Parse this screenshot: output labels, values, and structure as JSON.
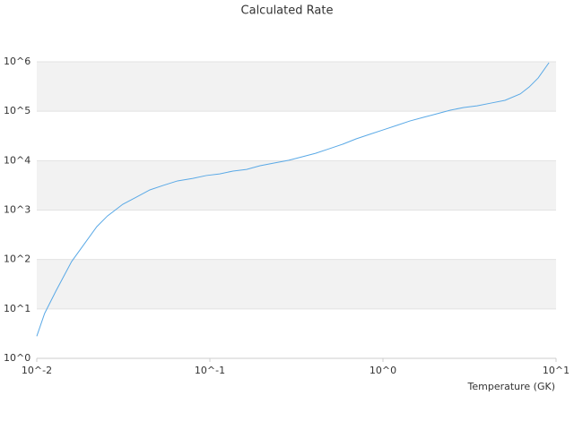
{
  "chart_data": {
    "type": "line",
    "title": "Calculated Rate",
    "x_label": "Temperature (GK)",
    "x_scale": "log",
    "y_scale": "log",
    "grid": true,
    "band_color": "#f2f2f2",
    "xlim": [
      0.01,
      10
    ],
    "ylim": [
      1,
      1000000
    ],
    "xticks": [
      {
        "value": 0.01,
        "label": "10^-2"
      },
      {
        "value": 0.1,
        "label": "10^-1"
      },
      {
        "value": 1,
        "label": "10^0"
      },
      {
        "value": 10,
        "label": "10^1"
      }
    ],
    "yticks": [
      {
        "value": 1,
        "label": "10^0"
      },
      {
        "value": 10,
        "label": "10^1"
      },
      {
        "value": 100,
        "label": "10^2"
      },
      {
        "value": 1000,
        "label": "10^3"
      },
      {
        "value": 10000,
        "label": "10^4"
      },
      {
        "value": 100000,
        "label": "10^5"
      },
      {
        "value": 1000000,
        "label": "10^6"
      }
    ],
    "series": [
      {
        "color": "#5aa9e6",
        "x": [
          0.01,
          0.0111,
          0.0129,
          0.0159,
          0.0184,
          0.0222,
          0.0256,
          0.0314,
          0.0376,
          0.045,
          0.0538,
          0.065,
          0.0798,
          0.0953,
          0.114,
          0.136,
          0.163,
          0.195,
          0.233,
          0.286,
          0.342,
          0.408,
          0.489,
          0.585,
          0.7,
          0.836,
          1.0,
          1.2,
          1.43,
          1.71,
          2.05,
          2.45,
          2.93,
          3.5,
          4.24,
          5.07,
          6.21,
          7.0,
          7.88,
          9.1
        ],
        "values": [
          2.8,
          8.1,
          23,
          91,
          185,
          460,
          760,
          1310,
          1830,
          2560,
          3160,
          3890,
          4380,
          5000,
          5400,
          6150,
          6650,
          7900,
          8900,
          10200,
          12000,
          14100,
          17400,
          21500,
          27600,
          34000,
          41800,
          51600,
          63500,
          75300,
          88700,
          105000,
          119000,
          129000,
          147000,
          166000,
          224000,
          310000,
          470000,
          960000
        ]
      }
    ]
  }
}
